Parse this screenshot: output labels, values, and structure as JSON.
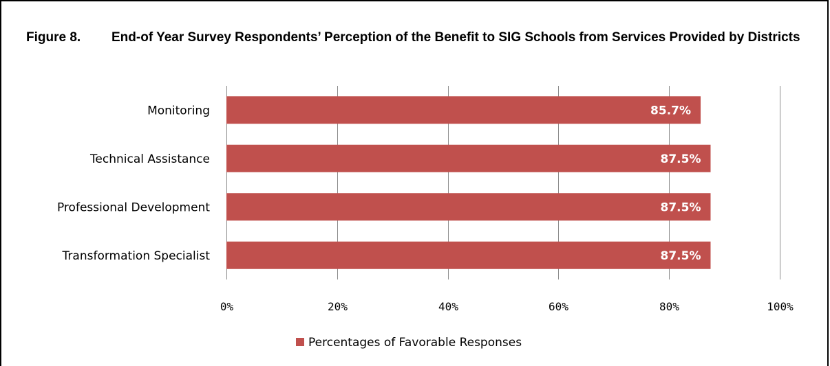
{
  "figure": {
    "number": "Figure 8.",
    "title": "End-of Year Survey Respondents’ Perception of the Benefit to SIG Schools from Services Provided by Districts"
  },
  "chart_data": {
    "type": "bar",
    "orientation": "horizontal",
    "categories": [
      "Monitoring",
      "Technical Assistance",
      "Professional Development",
      "Transformation Specialist"
    ],
    "series": [
      {
        "name": "Percentages of Favorable Responses",
        "values": [
          85.7,
          87.5,
          87.5,
          87.5
        ],
        "data_labels": [
          "85.7%",
          "87.5%",
          "87.5%",
          "87.5%"
        ],
        "color": "#c0504d"
      }
    ],
    "xlim": [
      0,
      100
    ],
    "x_ticks": [
      0,
      20,
      40,
      60,
      80,
      100
    ],
    "x_tick_labels": [
      "0%",
      "20%",
      "40%",
      "60%",
      "80%",
      "100%"
    ],
    "grid": true,
    "gridline_color": "#8c8c8c",
    "legend_position": "bottom"
  }
}
